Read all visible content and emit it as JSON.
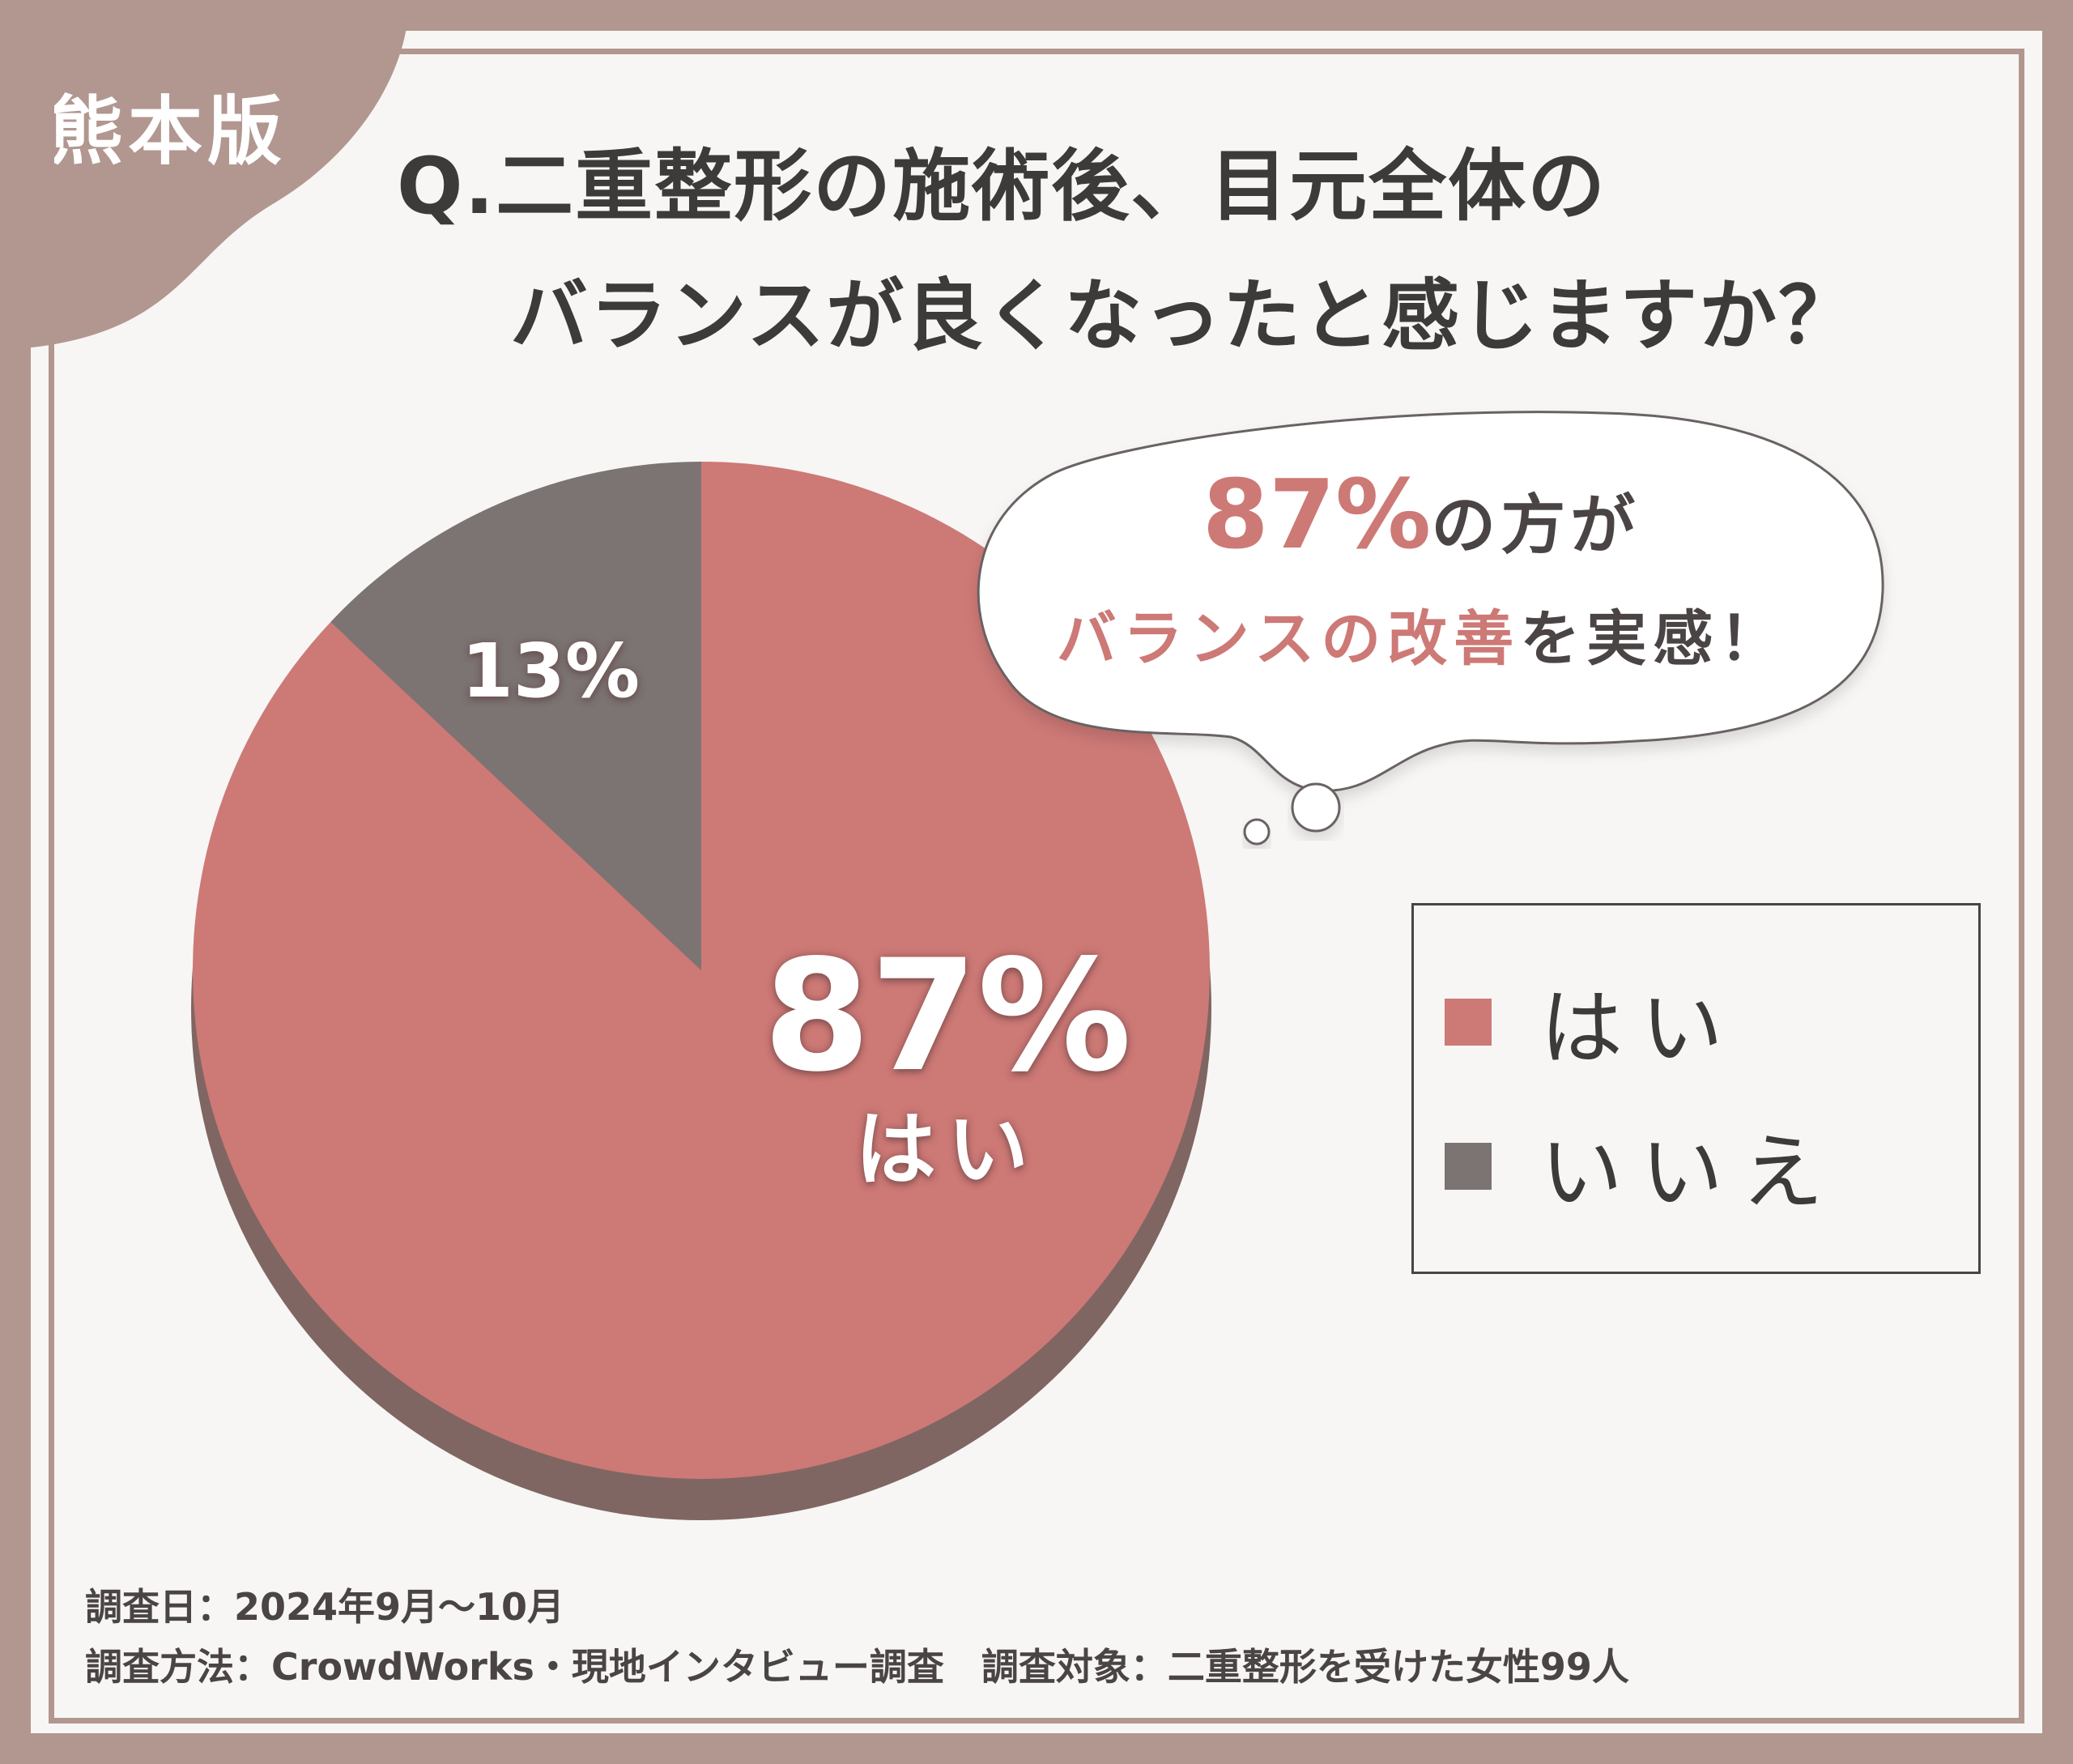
{
  "badge": "熊本版",
  "title": {
    "line1": "Q.二重整形の施術後、目元全体の",
    "line2": "バランスが良くなったと感じますか？"
  },
  "bubble": {
    "pct": "87%",
    "line1_rest": "の方が",
    "line2_highlight": "バランスの改善",
    "line2_rest": "を実感！"
  },
  "colors": {
    "frame": "#b19790",
    "yes": "#cd7976",
    "no": "#7b7473",
    "pie_shadow": "#7f6663",
    "text": "#3d3a3a"
  },
  "chart_data": {
    "type": "pie",
    "title": "Q.二重整形の施術後、目元全体のバランスが良くなったと感じますか？",
    "categories": [
      "はい",
      "いいえ"
    ],
    "values": [
      87,
      13
    ],
    "unit": "%",
    "legend_position": "right",
    "labels": [
      {
        "value": "87%",
        "category": "はい"
      },
      {
        "value": "13%"
      }
    ]
  },
  "legend": [
    {
      "label": "はい",
      "color": "#cd7976"
    },
    {
      "label": "いいえ",
      "color": "#7b7473"
    }
  ],
  "footer": {
    "line1": "調査日：2024年9月～10月",
    "line2": "調査方法：CrowdWorks・現地インタビュー調査　調査対象：二重整形を受けた女性99人"
  }
}
